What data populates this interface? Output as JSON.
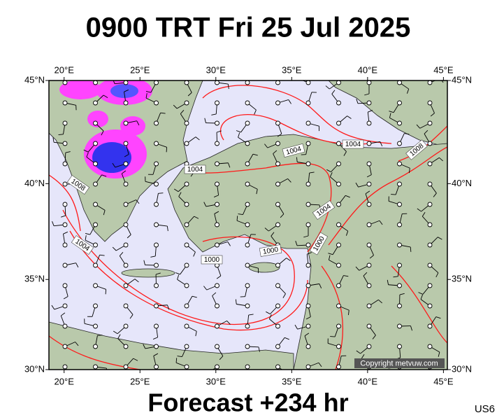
{
  "title": "0900 TRT Fri 25 Jul 2025",
  "footer": "Forecast +234 hr",
  "corner_code": "US6",
  "copyright": "Copyright metvuw.com",
  "lon_labels": [
    {
      "value": 20,
      "label": "20°E"
    },
    {
      "value": 25,
      "label": "25°E"
    },
    {
      "value": 30,
      "label": "30°E"
    },
    {
      "value": 35,
      "label": "35°E"
    },
    {
      "value": 40,
      "label": "40°E"
    },
    {
      "value": 45,
      "label": "45°E"
    }
  ],
  "lat_labels": [
    {
      "value": 45,
      "label": "45°N"
    },
    {
      "value": 40,
      "label": "40°N"
    },
    {
      "value": 35,
      "label": "35°N"
    },
    {
      "value": 30,
      "label": "30°N"
    }
  ],
  "isobar_labels": [
    "1004",
    "1004",
    "1004",
    "1008",
    "1008",
    "1004",
    "1004",
    "1000",
    "1000",
    "1000"
  ]
}
